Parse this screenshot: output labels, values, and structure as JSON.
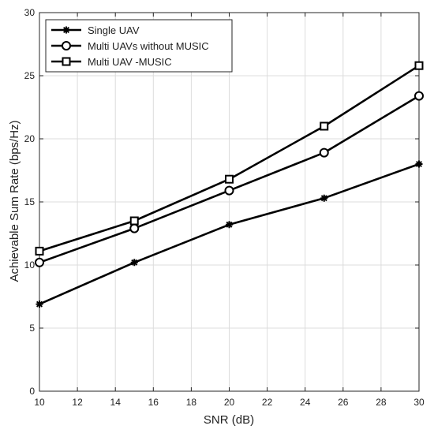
{
  "chart_data": {
    "type": "line",
    "title": "",
    "xlabel": "SNR (dB)",
    "ylabel": "Achievable Sum Rate (bps/Hz)",
    "xlim": [
      10,
      30
    ],
    "ylim": [
      0,
      30
    ],
    "xticks": [
      10,
      12,
      14,
      16,
      18,
      20,
      22,
      24,
      26,
      28,
      30
    ],
    "yticks": [
      0,
      5,
      10,
      15,
      20,
      25,
      30
    ],
    "grid": true,
    "legend_position": "top-left",
    "x": [
      10,
      15,
      20,
      25,
      30
    ],
    "series": [
      {
        "name": "Single UAV",
        "marker": "star",
        "color": "#000000",
        "values": [
          6.9,
          10.2,
          13.2,
          15.3,
          18.0
        ]
      },
      {
        "name": "Multi UAVs without MUSIC",
        "marker": "circle",
        "color": "#000000",
        "values": [
          10.2,
          12.9,
          15.9,
          18.9,
          23.4
        ]
      },
      {
        "name": "Multi UAV -MUSIC",
        "marker": "square",
        "color": "#000000",
        "values": [
          11.1,
          13.5,
          16.8,
          21.0,
          25.8
        ]
      }
    ]
  }
}
